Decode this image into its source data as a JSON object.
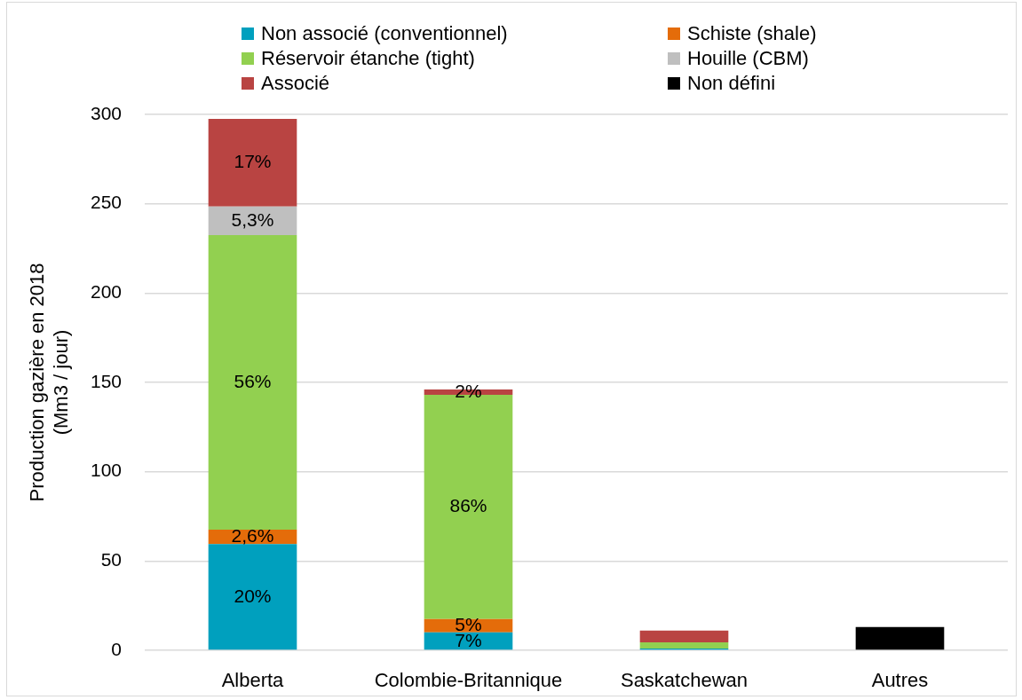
{
  "chart_data": {
    "type": "bar",
    "stacked": true,
    "categories": [
      "Alberta",
      "Colombie-Britannique",
      "Saskatchewan",
      "Autres"
    ],
    "ylabel": "Production gazière en 2018\n(Mm3 / jour)",
    "ylim": [
      0,
      300
    ],
    "yticks": [
      0,
      50,
      100,
      150,
      200,
      250,
      300
    ],
    "grid": "y",
    "legend": "top",
    "series": [
      {
        "name": "Non associé (conventionnel)",
        "color": "#00a0be",
        "values": [
          59.5,
          10,
          1,
          null
        ]
      },
      {
        "name": "Schiste (shale)",
        "color": "#e46c0a",
        "values": [
          8,
          7.5,
          null,
          null
        ]
      },
      {
        "name": "Réservoir étanche (tight)",
        "color": "#92d050",
        "values": [
          165,
          125.5,
          3.5,
          null
        ]
      },
      {
        "name": "Houille (CBM)",
        "color": "#bfbfbf",
        "values": [
          16,
          null,
          null,
          null
        ]
      },
      {
        "name": "Associé",
        "color": "#b94442",
        "values": [
          49,
          3,
          6.5,
          null
        ]
      },
      {
        "name": "Non défini",
        "color": "#000000",
        "values": [
          null,
          null,
          null,
          13
        ]
      }
    ],
    "annotations": [
      {
        "text": "20%",
        "x": "Alberta",
        "y": 59.5
      },
      {
        "text": "2,6%",
        "x": "Alberta",
        "y": 67.5
      },
      "56%",
      {
        "text": "5,3%",
        "x": "Alberta",
        "y": 248.5
      },
      {
        "text": "17%",
        "x": "Alberta",
        "y": 297.5
      },
      {
        "text": "7%",
        "x": "Colombie-Britannique",
        "y": 10
      },
      {
        "text": "5%",
        "x": "Colombie-Britannique",
        "y": 17.5
      },
      "86%",
      {
        "text": "2%",
        "x": "Colombie-Britannique",
        "y": 146
      }
    ]
  }
}
